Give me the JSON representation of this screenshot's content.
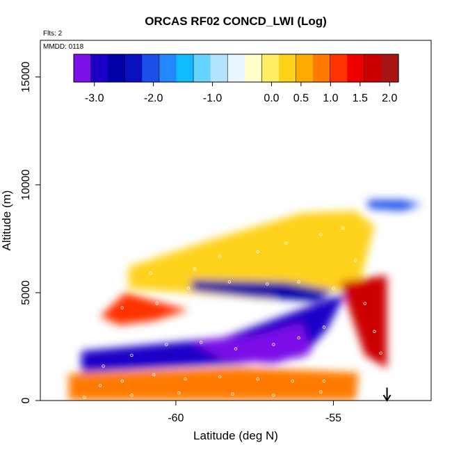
{
  "chart_data": {
    "type": "heatmap",
    "title": "ORCAS RF02 CONCD_LWI (Log)",
    "note_flights": "Flts: 2",
    "note_date": "MMDD: 0118",
    "xlabel": "Latitude (deg N)",
    "ylabel": "Altitude (m)",
    "xlim": [
      -64.3,
      -51.9
    ],
    "ylim": [
      0,
      16700
    ],
    "x_ticks": [
      -60,
      -55
    ],
    "x_tick_labels": [
      "-60",
      "-55"
    ],
    "y_ticks": [
      0,
      5000,
      10000,
      15000
    ],
    "y_tick_labels": [
      "0",
      "5000",
      "10000",
      "15000"
    ],
    "colorbar": {
      "range": [
        -3.35,
        2.15
      ],
      "tick_values": [
        -3.0,
        -2.0,
        -1.0,
        0.0,
        0.5,
        1.0,
        1.5,
        2.0
      ],
      "tick_labels": [
        "-3.0",
        "-2.0",
        "-1.0",
        "0.0",
        "0.5",
        "1.0",
        "1.5",
        "2.0"
      ],
      "colors": [
        "#7c10e8",
        "#1c00c8",
        "#0000a8",
        "#0a10c0",
        "#1a50e8",
        "#2288ff",
        "#11bbff",
        "#66d4ff",
        "#b4e4ff",
        "#eaf6ff",
        "#ffffcc",
        "#ffee66",
        "#ffd21a",
        "#ffaa00",
        "#ff7a00",
        "#ff3300",
        "#ee0000",
        "#cc0000",
        "#a81515"
      ]
    },
    "regions": [
      {
        "name": "upper warm plume",
        "value": 1.8,
        "polygon": [
          [
            -59.3,
            6700
          ],
          [
            -57.5,
            7600
          ],
          [
            -55.2,
            8200
          ],
          [
            -54.6,
            8100
          ],
          [
            -54.8,
            6000
          ],
          [
            -56.8,
            5200
          ],
          [
            -59.3,
            5400
          ]
        ]
      },
      {
        "name": "upper warm halo",
        "value": 0.2,
        "polygon": [
          [
            -61.5,
            6200
          ],
          [
            -59,
            7400
          ],
          [
            -56,
            8700
          ],
          [
            -54.3,
            8800
          ],
          [
            -53.7,
            8100
          ],
          [
            -54.2,
            5200
          ],
          [
            -57,
            4700
          ],
          [
            -61.5,
            5200
          ]
        ]
      },
      {
        "name": "left warm wedge",
        "value": 1.2,
        "polygon": [
          [
            -62.4,
            3900
          ],
          [
            -61.6,
            5000
          ],
          [
            -60.4,
            4500
          ],
          [
            -59.6,
            4200
          ],
          [
            -60.7,
            3700
          ],
          [
            -61.8,
            3500
          ]
        ]
      },
      {
        "name": "right warm spike",
        "value": 1.7,
        "polygon": [
          [
            -53.3,
            5800
          ],
          [
            -53.3,
            1500
          ],
          [
            -54.0,
            2100
          ],
          [
            -54.8,
            5500
          ]
        ]
      },
      {
        "name": "mid blue band",
        "value": -2.9,
        "polygon": [
          [
            -63.0,
            2300
          ],
          [
            -58.5,
            2900
          ],
          [
            -54.6,
            5000
          ],
          [
            -55.2,
            3300
          ],
          [
            -56,
            2000
          ],
          [
            -58,
            1700
          ],
          [
            -63.0,
            1300
          ]
        ]
      },
      {
        "name": "violet core",
        "value": -3.3,
        "polygon": [
          [
            -59.5,
            2700
          ],
          [
            -57.5,
            3000
          ],
          [
            -56,
            3600
          ],
          [
            -55.7,
            2200
          ],
          [
            -56.9,
            1700
          ],
          [
            -58.5,
            1900
          ]
        ]
      },
      {
        "name": "upper blue ribbon",
        "value": -2.7,
        "polygon": [
          [
            -59.5,
            5600
          ],
          [
            -56.5,
            5500
          ],
          [
            -55.0,
            5100
          ],
          [
            -55.5,
            4600
          ],
          [
            -57.5,
            4800
          ],
          [
            -59.5,
            5100
          ]
        ]
      },
      {
        "name": "low red band",
        "value": 1.8,
        "polygon": [
          [
            -63.0,
            900
          ],
          [
            -58,
            1200
          ],
          [
            -54.9,
            1000
          ],
          [
            -54.9,
            200
          ],
          [
            -58,
            350
          ],
          [
            -63.0,
            300
          ]
        ]
      },
      {
        "name": "low orange layer",
        "value": 0.8,
        "polygon": [
          [
            -63.4,
            1250
          ],
          [
            -58,
            1550
          ],
          [
            -54.2,
            1300
          ],
          [
            -54.3,
            0
          ],
          [
            -63.4,
            0
          ]
        ]
      },
      {
        "name": "top cloud tip",
        "value": -2.0,
        "polygon": [
          [
            -53.9,
            9300
          ],
          [
            -52.8,
            9300
          ],
          [
            -52.2,
            9100
          ],
          [
            -52.8,
            8800
          ],
          [
            -53.9,
            8900
          ]
        ]
      }
    ],
    "obs_points": [
      [
        -62.4,
        700
      ],
      [
        -61.7,
        900
      ],
      [
        -60.7,
        1200
      ],
      [
        -59.7,
        1000
      ],
      [
        -58.6,
        1100
      ],
      [
        -57.4,
        1000
      ],
      [
        -56.3,
        900
      ],
      [
        -55.3,
        900
      ],
      [
        -62.9,
        150
      ],
      [
        -61.4,
        250
      ],
      [
        -59.9,
        350
      ],
      [
        -58.2,
        300
      ],
      [
        -56.9,
        250
      ],
      [
        -55.4,
        400
      ],
      [
        -62.3,
        1600
      ],
      [
        -61.4,
        2100
      ],
      [
        -60.3,
        2600
      ],
      [
        -59.2,
        2700
      ],
      [
        -58.1,
        2400
      ],
      [
        -56.9,
        2600
      ],
      [
        -56.1,
        2900
      ],
      [
        -55.3,
        3400
      ],
      [
        -61.7,
        4300
      ],
      [
        -60.6,
        4500
      ],
      [
        -59.6,
        5200
      ],
      [
        -58.3,
        5500
      ],
      [
        -57.1,
        5400
      ],
      [
        -56.1,
        5500
      ],
      [
        -55.0,
        5200
      ],
      [
        -60.8,
        5900
      ],
      [
        -59.4,
        6100
      ],
      [
        -58.6,
        6700
      ],
      [
        -57.4,
        6900
      ],
      [
        -56.5,
        7300
      ],
      [
        -55.4,
        7700
      ],
      [
        -54.7,
        8000
      ],
      [
        -54.3,
        6500
      ],
      [
        -54.0,
        4500
      ],
      [
        -53.7,
        3200
      ],
      [
        -53.5,
        2200
      ],
      [
        -53.1,
        6300
      ],
      [
        -52.4,
        7500
      ],
      [
        -52.0,
        9150
      ]
    ],
    "flight_end_marker": {
      "lat": -53.3,
      "alt": 600
    },
    "grid": false
  }
}
